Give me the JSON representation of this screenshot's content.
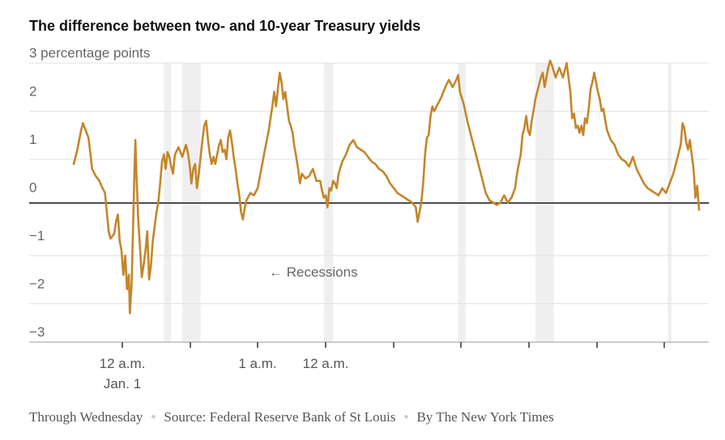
{
  "chart_data": {
    "type": "line",
    "title": "The difference between two- and 10-year Treasury yields",
    "units_label": "3 percentage points",
    "ylim": [
      -3,
      3
    ],
    "y_ticks": [
      {
        "value": 2,
        "label": "2"
      },
      {
        "value": 1,
        "label": "1"
      },
      {
        "value": 0,
        "label": "0"
      },
      {
        "value": -1,
        "label": "−1"
      },
      {
        "value": -2,
        "label": "−2"
      },
      {
        "value": -3,
        "label": "−3"
      }
    ],
    "x_tick_labels": [
      "12 a.m.",
      "Jan. 1",
      "1 a.m.",
      "12 a.m."
    ],
    "annotation": "← Recessions",
    "series_color": "#c4862a",
    "recession_color": "#efefef",
    "recessions": [
      [
        4.9,
        5.3
      ],
      [
        5.9,
        6.9
      ],
      [
        13.6,
        14.1
      ],
      [
        20.9,
        21.3
      ],
      [
        25.1,
        26.1
      ],
      [
        32.3,
        32.5
      ]
    ],
    "series": [
      {
        "values": [
          [
            0.0,
            0.7
          ],
          [
            0.2,
            1.0
          ],
          [
            0.4,
            1.4
          ],
          [
            0.5,
            1.55
          ],
          [
            0.6,
            1.45
          ],
          [
            0.8,
            1.25
          ],
          [
            0.9,
            0.95
          ],
          [
            1.0,
            0.6
          ],
          [
            1.2,
            0.45
          ],
          [
            1.4,
            0.35
          ],
          [
            1.5,
            0.25
          ],
          [
            1.7,
            0.1
          ],
          [
            1.8,
            -0.3
          ],
          [
            1.9,
            -0.7
          ],
          [
            2.0,
            -0.85
          ],
          [
            2.2,
            -0.75
          ],
          [
            2.3,
            -0.5
          ],
          [
            2.4,
            -0.35
          ],
          [
            2.5,
            -0.9
          ],
          [
            2.6,
            -1.1
          ],
          [
            2.7,
            -1.6
          ],
          [
            2.8,
            -1.2
          ],
          [
            2.9,
            -1.9
          ],
          [
            3.0,
            -1.6
          ],
          [
            3.05,
            -2.4
          ],
          [
            3.15,
            -1.8
          ],
          [
            3.2,
            -1.0
          ],
          [
            3.3,
            0.5
          ],
          [
            3.35,
            1.2
          ],
          [
            3.4,
            0.6
          ],
          [
            3.5,
            -0.4
          ],
          [
            3.6,
            -1.0
          ],
          [
            3.7,
            -1.65
          ],
          [
            3.8,
            -1.4
          ],
          [
            3.9,
            -1.1
          ],
          [
            4.0,
            -0.7
          ],
          [
            4.1,
            -1.7
          ],
          [
            4.2,
            -1.4
          ],
          [
            4.3,
            -0.9
          ],
          [
            4.4,
            -0.6
          ],
          [
            4.5,
            -0.3
          ],
          [
            4.6,
            -0.1
          ],
          [
            4.7,
            0.3
          ],
          [
            4.8,
            0.75
          ],
          [
            4.9,
            0.9
          ],
          [
            5.0,
            0.6
          ],
          [
            5.1,
            0.95
          ],
          [
            5.2,
            0.85
          ],
          [
            5.3,
            0.65
          ],
          [
            5.4,
            0.5
          ],
          [
            5.5,
            0.9
          ],
          [
            5.7,
            1.05
          ],
          [
            5.9,
            0.85
          ],
          [
            6.1,
            1.1
          ],
          [
            6.2,
            0.95
          ],
          [
            6.3,
            0.7
          ],
          [
            6.4,
            0.3
          ],
          [
            6.5,
            0.6
          ],
          [
            6.6,
            0.7
          ],
          [
            6.7,
            0.2
          ],
          [
            6.8,
            0.5
          ],
          [
            6.9,
            0.85
          ],
          [
            7.0,
            1.2
          ],
          [
            7.1,
            1.5
          ],
          [
            7.2,
            1.6
          ],
          [
            7.3,
            1.2
          ],
          [
            7.4,
            0.9
          ],
          [
            7.5,
            0.7
          ],
          [
            7.6,
            0.85
          ],
          [
            7.7,
            0.7
          ],
          [
            7.8,
            0.9
          ],
          [
            7.9,
            1.1
          ],
          [
            8.0,
            1.2
          ],
          [
            8.1,
            0.95
          ],
          [
            8.2,
            1.0
          ],
          [
            8.3,
            0.8
          ],
          [
            8.4,
            1.25
          ],
          [
            8.5,
            1.4
          ],
          [
            8.6,
            1.15
          ],
          [
            8.7,
            0.85
          ],
          [
            8.8,
            0.6
          ],
          [
            8.9,
            0.3
          ],
          [
            9.0,
            0.05
          ],
          [
            9.1,
            -0.3
          ],
          [
            9.2,
            -0.45
          ],
          [
            9.3,
            -0.2
          ],
          [
            9.4,
            -0.05
          ],
          [
            9.6,
            0.1
          ],
          [
            9.8,
            0.05
          ],
          [
            10.0,
            0.2
          ],
          [
            10.2,
            0.6
          ],
          [
            10.4,
            1.0
          ],
          [
            10.6,
            1.4
          ],
          [
            10.8,
            1.9
          ],
          [
            10.9,
            2.2
          ],
          [
            11.0,
            1.9
          ],
          [
            11.1,
            2.25
          ],
          [
            11.2,
            2.6
          ],
          [
            11.3,
            2.4
          ],
          [
            11.4,
            2.05
          ],
          [
            11.5,
            2.2
          ],
          [
            11.6,
            1.9
          ],
          [
            11.7,
            1.6
          ],
          [
            11.8,
            1.5
          ],
          [
            11.9,
            1.35
          ],
          [
            12.0,
            1.05
          ],
          [
            12.1,
            0.85
          ],
          [
            12.2,
            0.6
          ],
          [
            12.3,
            0.3
          ],
          [
            12.4,
            0.5
          ],
          [
            12.6,
            0.4
          ],
          [
            12.8,
            0.45
          ],
          [
            13.0,
            0.6
          ],
          [
            13.2,
            0.35
          ],
          [
            13.4,
            0.35
          ],
          [
            13.5,
            0.15
          ],
          [
            13.6,
            0.0
          ],
          [
            13.7,
            0.05
          ],
          [
            13.8,
            -0.2
          ],
          [
            13.9,
            0.2
          ],
          [
            14.0,
            0.15
          ],
          [
            14.1,
            0.35
          ],
          [
            14.2,
            0.3
          ],
          [
            14.3,
            0.2
          ],
          [
            14.4,
            0.5
          ],
          [
            14.6,
            0.75
          ],
          [
            14.8,
            0.9
          ],
          [
            15.0,
            1.1
          ],
          [
            15.2,
            1.2
          ],
          [
            15.4,
            1.05
          ],
          [
            15.6,
            1.0
          ],
          [
            15.8,
            0.95
          ],
          [
            16.0,
            0.85
          ],
          [
            16.2,
            0.75
          ],
          [
            16.4,
            0.7
          ],
          [
            16.6,
            0.6
          ],
          [
            16.8,
            0.55
          ],
          [
            17.0,
            0.45
          ],
          [
            17.2,
            0.3
          ],
          [
            17.4,
            0.2
          ],
          [
            17.6,
            0.1
          ],
          [
            17.8,
            0.05
          ],
          [
            18.0,
            0.0
          ],
          [
            18.2,
            -0.05
          ],
          [
            18.4,
            -0.1
          ],
          [
            18.6,
            -0.2
          ],
          [
            18.7,
            -0.5
          ],
          [
            18.8,
            -0.3
          ],
          [
            18.9,
            -0.1
          ],
          [
            19.0,
            0.3
          ],
          [
            19.1,
            0.9
          ],
          [
            19.2,
            1.25
          ],
          [
            19.3,
            1.3
          ],
          [
            19.4,
            1.7
          ],
          [
            19.5,
            1.9
          ],
          [
            19.6,
            1.8
          ],
          [
            19.8,
            1.95
          ],
          [
            20.0,
            2.1
          ],
          [
            20.2,
            2.3
          ],
          [
            20.4,
            2.45
          ],
          [
            20.6,
            2.3
          ],
          [
            20.8,
            2.45
          ],
          [
            20.9,
            2.55
          ],
          [
            21.0,
            2.2
          ],
          [
            21.2,
            1.95
          ],
          [
            21.4,
            1.6
          ],
          [
            21.6,
            1.3
          ],
          [
            21.8,
            1.0
          ],
          [
            22.0,
            0.7
          ],
          [
            22.2,
            0.4
          ],
          [
            22.4,
            0.1
          ],
          [
            22.6,
            -0.05
          ],
          [
            22.8,
            -0.1
          ],
          [
            23.0,
            -0.15
          ],
          [
            23.2,
            -0.1
          ],
          [
            23.4,
            0.05
          ],
          [
            23.6,
            -0.1
          ],
          [
            23.8,
            0.0
          ],
          [
            24.0,
            0.2
          ],
          [
            24.1,
            0.5
          ],
          [
            24.3,
            0.9
          ],
          [
            24.4,
            1.3
          ],
          [
            24.5,
            1.45
          ],
          [
            24.6,
            1.7
          ],
          [
            24.7,
            1.4
          ],
          [
            24.8,
            1.3
          ],
          [
            24.9,
            1.6
          ],
          [
            25.0,
            1.8
          ],
          [
            25.1,
            2.05
          ],
          [
            25.2,
            2.2
          ],
          [
            25.3,
            2.35
          ],
          [
            25.4,
            2.5
          ],
          [
            25.5,
            2.6
          ],
          [
            25.6,
            2.3
          ],
          [
            25.7,
            2.5
          ],
          [
            25.8,
            2.7
          ],
          [
            25.9,
            2.85
          ],
          [
            26.0,
            2.75
          ],
          [
            26.2,
            2.5
          ],
          [
            26.4,
            2.7
          ],
          [
            26.6,
            2.5
          ],
          [
            26.8,
            2.8
          ],
          [
            26.9,
            2.5
          ],
          [
            27.0,
            2.2
          ],
          [
            27.1,
            1.65
          ],
          [
            27.2,
            1.75
          ],
          [
            27.3,
            1.45
          ],
          [
            27.4,
            1.5
          ],
          [
            27.5,
            1.35
          ],
          [
            27.6,
            1.5
          ],
          [
            27.7,
            1.3
          ],
          [
            27.8,
            1.65
          ],
          [
            27.9,
            1.55
          ],
          [
            28.0,
            1.85
          ],
          [
            28.1,
            2.25
          ],
          [
            28.2,
            2.4
          ],
          [
            28.3,
            2.6
          ],
          [
            28.4,
            2.4
          ],
          [
            28.5,
            2.2
          ],
          [
            28.6,
            2.05
          ],
          [
            28.7,
            1.8
          ],
          [
            28.8,
            1.85
          ],
          [
            28.9,
            1.6
          ],
          [
            29.0,
            1.4
          ],
          [
            29.2,
            1.2
          ],
          [
            29.4,
            1.1
          ],
          [
            29.6,
            0.9
          ],
          [
            29.8,
            0.8
          ],
          [
            30.0,
            0.75
          ],
          [
            30.2,
            0.65
          ],
          [
            30.4,
            0.85
          ],
          [
            30.6,
            0.6
          ],
          [
            30.8,
            0.45
          ],
          [
            31.0,
            0.3
          ],
          [
            31.2,
            0.2
          ],
          [
            31.4,
            0.15
          ],
          [
            31.6,
            0.1
          ],
          [
            31.8,
            0.05
          ],
          [
            32.0,
            0.2
          ],
          [
            32.2,
            0.1
          ],
          [
            32.4,
            0.3
          ],
          [
            32.6,
            0.5
          ],
          [
            32.8,
            0.8
          ],
          [
            33.0,
            1.1
          ],
          [
            33.1,
            1.55
          ],
          [
            33.2,
            1.45
          ],
          [
            33.3,
            1.15
          ],
          [
            33.4,
            1.0
          ],
          [
            33.5,
            1.2
          ],
          [
            33.6,
            0.9
          ],
          [
            33.7,
            0.6
          ],
          [
            33.8,
            0.0
          ],
          [
            33.9,
            0.25
          ],
          [
            34.0,
            -0.25
          ]
        ]
      }
    ]
  },
  "footer": {
    "note": "Through Wednesday",
    "source": "Source: Federal Reserve Bank of St Louis",
    "byline": "By The New York Times"
  }
}
